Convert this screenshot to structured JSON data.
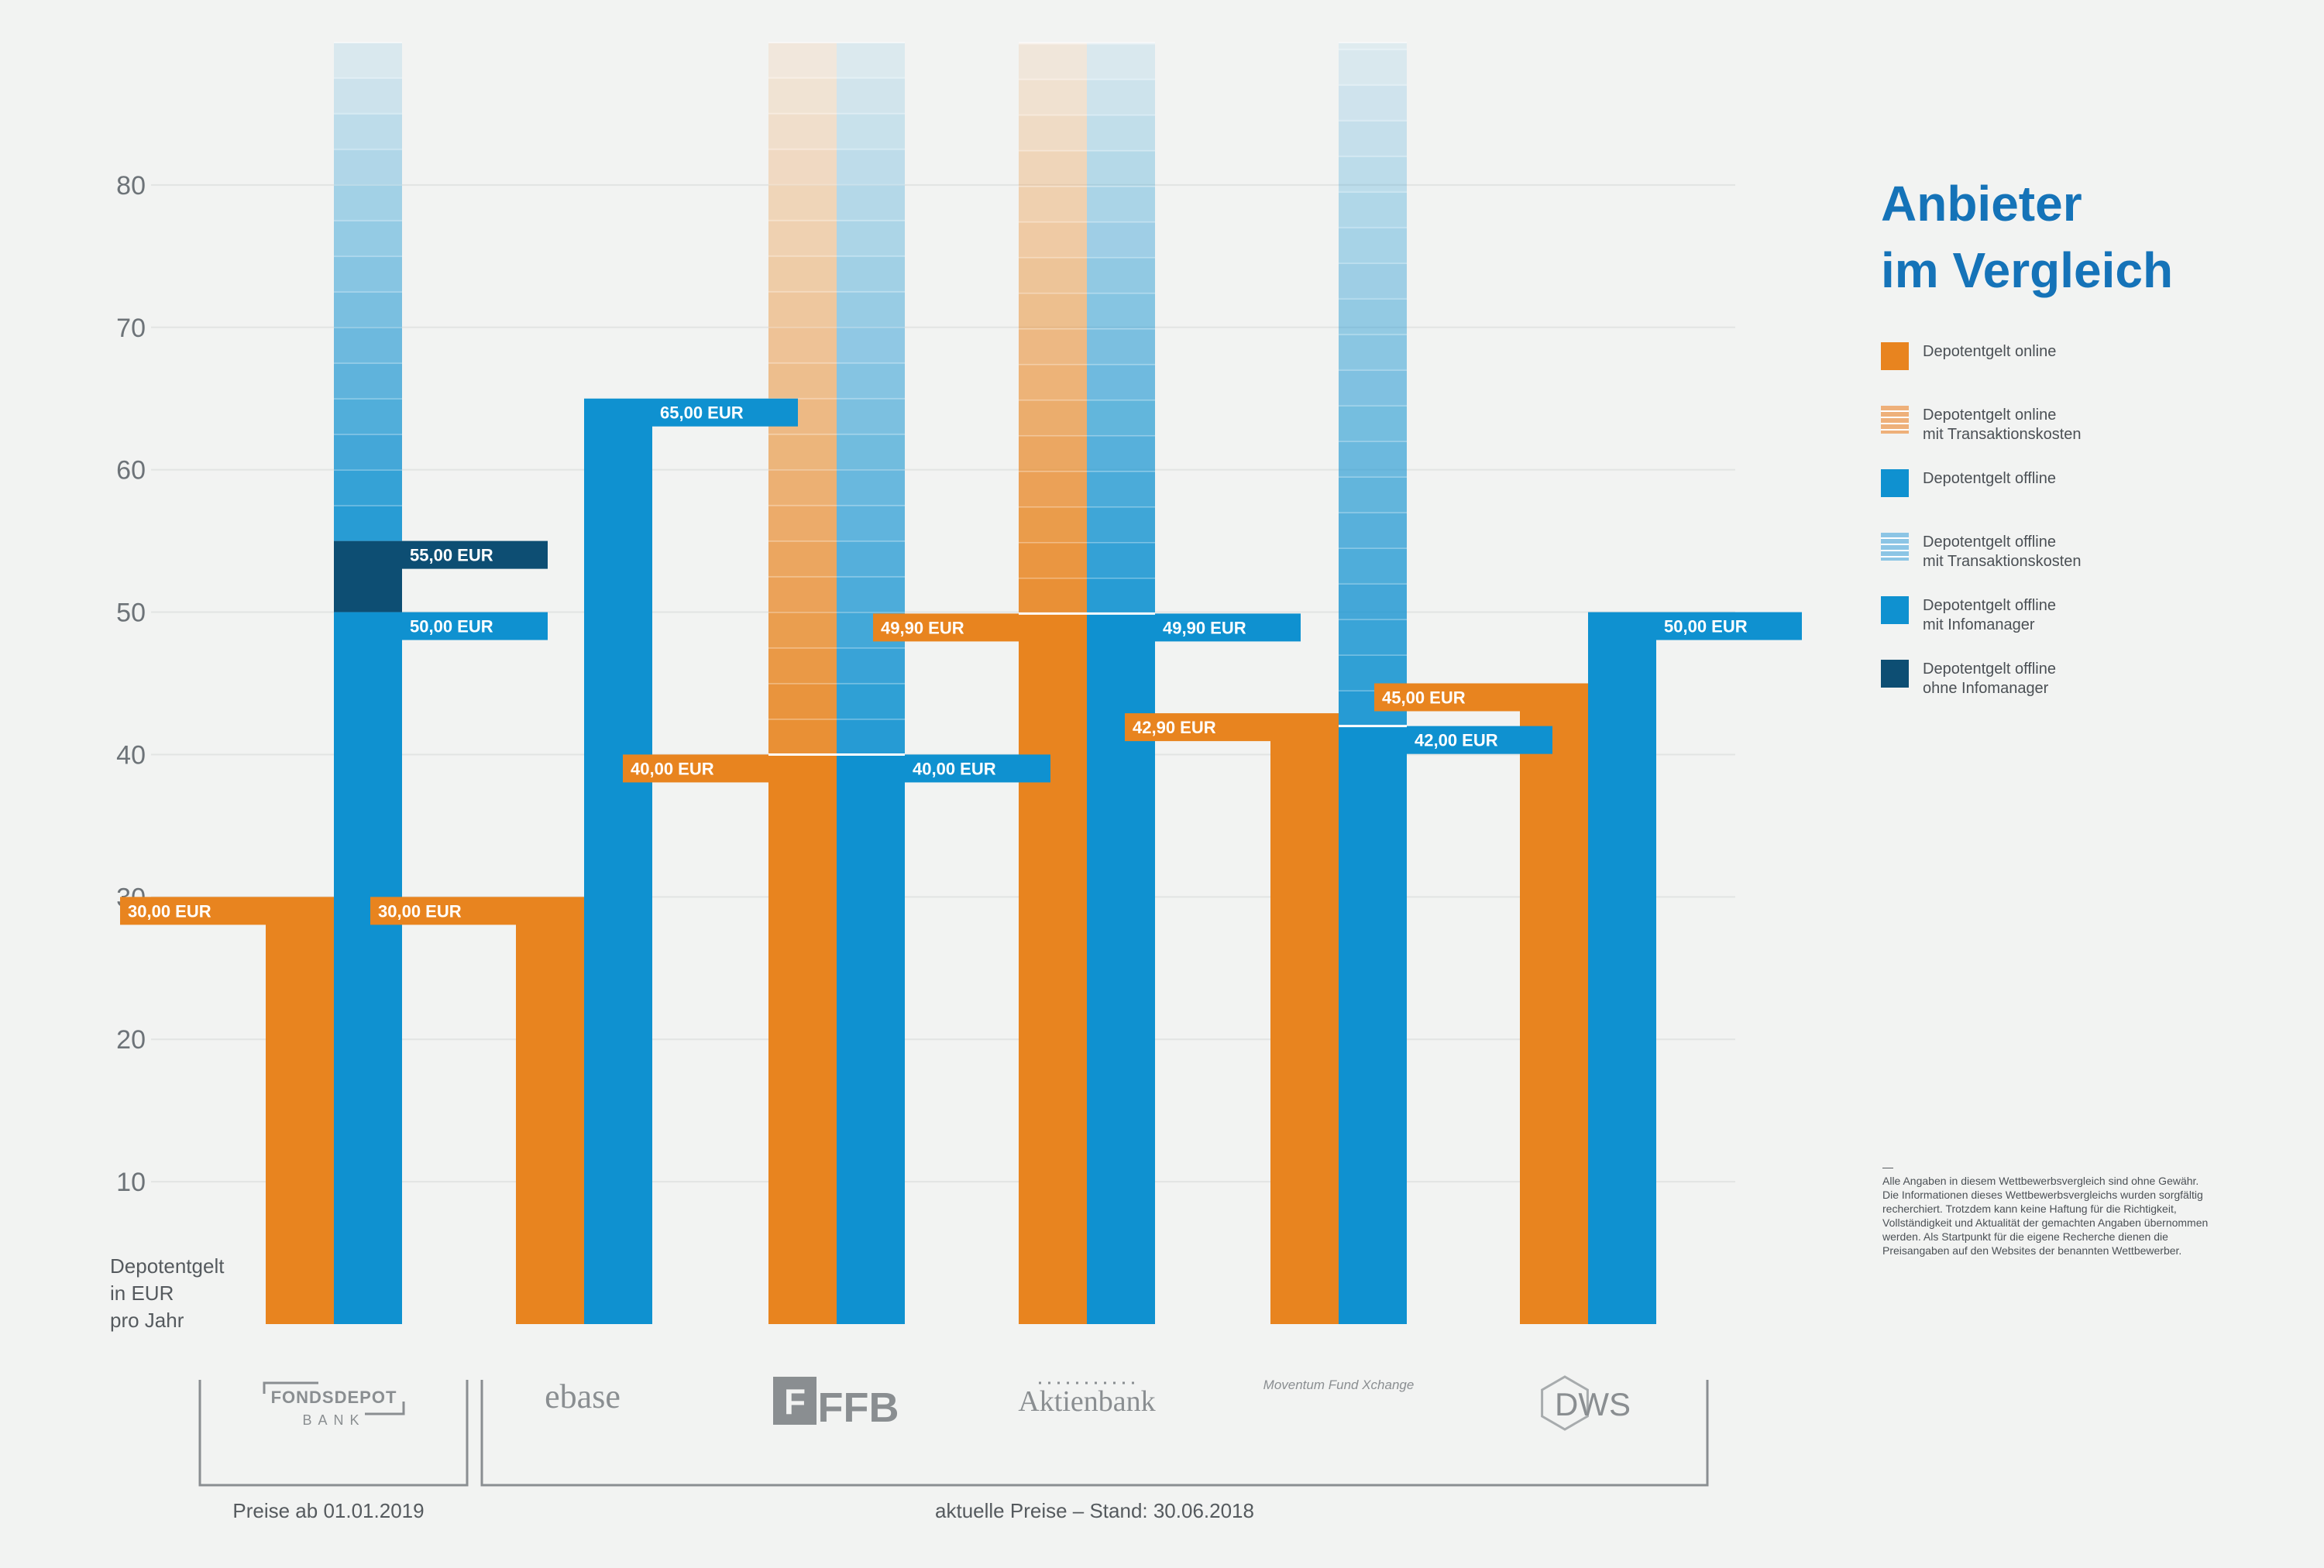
{
  "chart_data": {
    "type": "bar",
    "title": "Anbieter im Vergleich",
    "title_lines": [
      "Anbieter",
      "im Vergleich"
    ],
    "ylabel_lines": [
      "Depotentgelt",
      "in EUR",
      "pro Jahr"
    ],
    "ylim": [
      0,
      90
    ],
    "yticks": [
      10,
      20,
      30,
      40,
      50,
      60,
      70,
      80
    ],
    "grid": true,
    "legend_placement": "right",
    "categories": [
      "FONDSDEPOT BANK",
      "ebase",
      "FFB",
      "Aktienbank",
      "Moventum Fund Xchange",
      "DWS"
    ],
    "series": [
      {
        "name": "Depotentgelt online",
        "values": [
          30.0,
          30.0,
          40.0,
          49.9,
          42.9,
          45.0
        ],
        "color": "#e8841f"
      },
      {
        "name": "Depotentgelt offline",
        "values": [
          50.0,
          65.0,
          40.0,
          49.9,
          42.0,
          50.0
        ],
        "color": "#0f91d0"
      }
    ],
    "transaction_cost_extensions": [
      {
        "category": "FFB",
        "series": "Depotentgelt online",
        "from": 40.0,
        "to": 90
      },
      {
        "category": "FFB",
        "series": "Depotentgelt offline",
        "from": 40.0,
        "to": 90
      },
      {
        "category": "Aktienbank",
        "series": "Depotentgelt online",
        "from": 49.9,
        "to": 90
      },
      {
        "category": "Aktienbank",
        "series": "Depotentgelt offline",
        "from": 49.9,
        "to": 90
      },
      {
        "category": "Moventum Fund Xchange",
        "series": "Depotentgelt offline",
        "from": 42.0,
        "to": 90
      }
    ],
    "infomanager_extensions": [
      {
        "category": "FONDSDEPOT BANK",
        "series": "Depotentgelt offline mit Infomanager",
        "from": 0,
        "to": 50.0
      },
      {
        "category": "FONDSDEPOT BANK",
        "series": "Depotentgelt offline ohne Infomanager",
        "from": 50.0,
        "to": 55.0
      },
      {
        "category": "FONDSDEPOT BANK",
        "series": "Depotentgelt offline mit Transaktionskosten",
        "from": 55.0,
        "to": 90
      }
    ],
    "labels": {
      "online": [
        "30,00 EUR",
        "30,00 EUR",
        "40,00 EUR",
        "49,90 EUR",
        "42,90 EUR",
        "45,00 EUR"
      ],
      "offline": [
        "50,00 EUR",
        "65,00 EUR",
        "40,00 EUR",
        "49,90 EUR",
        "42,00 EUR",
        "50,00 EUR"
      ],
      "extra": "55,00 EUR"
    },
    "brackets": [
      {
        "label": "Preise ab 01.01.2019",
        "from_category": 0,
        "to_category": 0
      },
      {
        "label": "aktuelle Preise – Stand: 30.06.2018",
        "from_category": 1,
        "to_category": 5
      }
    ]
  },
  "logos": {
    "fondsdepot_top": "FONDSDEPOT",
    "fondsdepot_bottom": "BANK",
    "ebase": "ebase",
    "ffb_mark": "F",
    "ffb": "FFB",
    "aktienbank": "Aktienbank",
    "moventum": "Moventum Fund Xchange",
    "dws": "DWS"
  },
  "legend": {
    "items": [
      {
        "lines": [
          "Depotentgelt online"
        ],
        "color": "#e8841f",
        "style": "solid"
      },
      {
        "lines": [
          "Depotentgelt online",
          "mit Transaktionskosten"
        ],
        "color": "#eeb07a",
        "style": "striped"
      },
      {
        "lines": [
          "Depotentgelt offline"
        ],
        "color": "#0f91d0",
        "style": "solid"
      },
      {
        "lines": [
          "Depotentgelt offline",
          "mit Transaktionskosten"
        ],
        "color": "#8cc5e5",
        "style": "striped"
      },
      {
        "lines": [
          "Depotentgelt offline",
          "mit Infomanager"
        ],
        "color": "#0f91d0",
        "style": "solid"
      },
      {
        "lines": [
          "Depotentgelt offline",
          "ohne Infomanager"
        ],
        "color": "#0d4e73",
        "style": "solid"
      }
    ]
  },
  "disclaimer": {
    "dash": "—",
    "text": "Alle Angaben in diesem Wettbewerbsvergleich sind ohne Gewähr. Die Informationen dieses Wettbewerbsvergleichs wurden sorgfältig recherchiert. Trotzdem kann keine Haftung für die Richtigkeit, Vollständigkeit und Aktualität der gemachten Angaben übernommen werden. Als Startpunkt für die eigene Recherche dienen die Preisangaben auf den Websites der benannten Wettbewerber."
  }
}
